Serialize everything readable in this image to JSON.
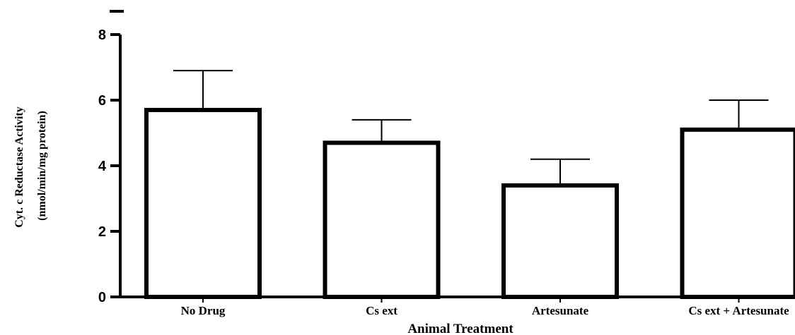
{
  "chart_data": {
    "type": "bar",
    "categories": [
      "No Drug",
      "Cs ext",
      "Artesunate",
      "Cs ext + Artesunate"
    ],
    "values": [
      5.7,
      4.7,
      3.4,
      5.1
    ],
    "errors": [
      1.2,
      0.7,
      0.8,
      0.9
    ],
    "ylabel": [
      "Cyt. c Reductase Activity",
      "(nmol/min/mg protein)"
    ],
    "xlabel": "Animal Treatment",
    "ylim": [
      0,
      8
    ],
    "yticks": [
      0,
      2,
      4,
      6,
      8
    ],
    "bar_fill": "#ffffff",
    "bar_stroke": "#000000",
    "grid": false,
    "legend": "none"
  }
}
